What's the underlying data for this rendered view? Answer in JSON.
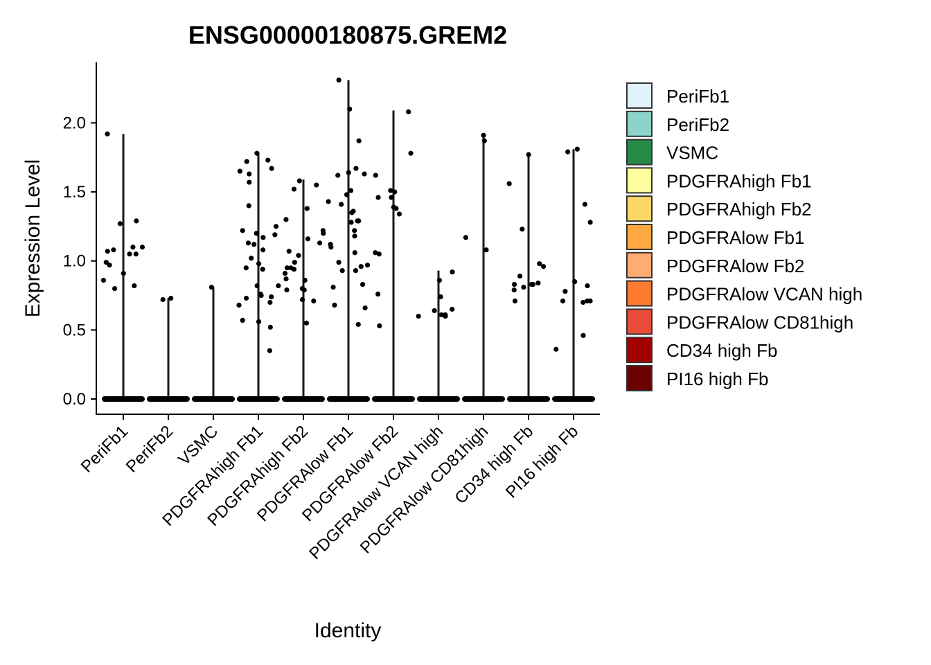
{
  "chart_data": {
    "type": "violin",
    "title": "ENSG00000180875.GREM2",
    "xlabel": "Identity",
    "ylabel": "Expression Level",
    "ylim": [
      -0.1,
      2.35
    ],
    "yticks": [
      0.0,
      0.5,
      1.0,
      1.5,
      2.0
    ],
    "ytick_labels": [
      "0.0",
      "0.5",
      "1.0",
      "1.5",
      "2.0"
    ],
    "grid": false,
    "legend_position": "right",
    "categories": [
      "PeriFb1",
      "PeriFb2",
      "VSMC",
      "PDGFRAhigh Fb1",
      "PDGFRAhigh Fb2",
      "PDGFRAlow Fb1",
      "PDGFRAlow Fb2",
      "PDGFRAlow VCAN high",
      "PDGFRAlow CD81high",
      "CD34 high Fb",
      "PI16 high Fb"
    ],
    "colors": [
      "#e0f3f8",
      "#8dd3c7",
      "#238b45",
      "#ffffa0",
      "#fed768",
      "#fda93f",
      "#fdad74",
      "#fd7a30",
      "#e84d3a",
      "#a30000",
      "#6a0000"
    ],
    "violin_max": [
      1.92,
      0.73,
      0.81,
      1.78,
      1.59,
      2.31,
      2.09,
      0.93,
      1.91,
      1.78,
      1.81
    ],
    "points": [
      [
        1.1,
        0.99,
        1.27,
        1.29,
        0.97,
        1.05,
        1.07,
        1.1,
        0.8,
        0.82,
        0.86,
        1.08,
        1.05,
        0.91,
        1.92
      ],
      [
        0.73,
        0.72
      ],
      [
        0.81
      ],
      [
        1.57,
        1.25,
        1.17,
        1.22,
        0.73,
        0.74,
        0.7,
        0.68,
        0.57,
        1.63,
        1.67,
        1.72,
        1.12,
        0.94,
        0.98,
        1.02,
        0.82,
        0.76,
        0.95,
        0.35,
        1.78,
        1.65,
        1.4,
        1.2,
        1.13,
        1.19,
        1.08,
        0.56,
        0.52,
        0.82,
        0.75,
        1.73
      ],
      [
        1.55,
        0.86,
        1.13,
        0.94,
        0.95,
        0.79,
        1.04,
        1.3,
        1.38,
        1.52,
        1.22,
        0.99,
        0.8,
        0.72,
        0.71,
        0.79,
        1.2,
        1.16,
        0.95,
        0.91,
        0.55,
        0.87,
        1.58,
        1.07
      ],
      [
        1.29,
        1.28,
        1.67,
        0.97,
        0.93,
        0.99,
        0.54,
        1.35,
        1.41,
        1.87,
        2.1,
        2.31,
        1.62,
        1.51,
        1.36,
        1.06,
        0.96,
        0.68,
        0.83,
        0.81,
        0.66,
        1.64,
        1.63,
        1.12,
        1.1,
        1.29,
        1.22,
        1.18,
        0.93,
        1.48,
        1.43
      ],
      [
        1.39,
        1.38,
        1.46,
        1.51,
        1.78,
        1.05,
        1.62,
        2.08,
        1.5,
        1.46,
        1.34,
        1.06,
        0.76,
        0.53
      ],
      [
        0.86,
        0.61,
        0.92,
        0.6,
        0.6,
        0.61,
        0.65,
        0.74,
        0.64
      ],
      [
        1.87,
        1.08,
        1.17,
        1.91
      ],
      [
        1.56,
        0.81,
        0.89,
        0.83,
        0.96,
        0.84,
        0.83,
        0.83,
        0.98,
        1.23,
        1.77,
        0.79,
        0.71
      ],
      [
        1.81,
        1.28,
        0.46,
        0.7,
        0.85,
        0.82,
        0.71,
        0.71,
        0.78,
        0.71,
        1.79,
        1.41,
        0.36
      ]
    ]
  }
}
